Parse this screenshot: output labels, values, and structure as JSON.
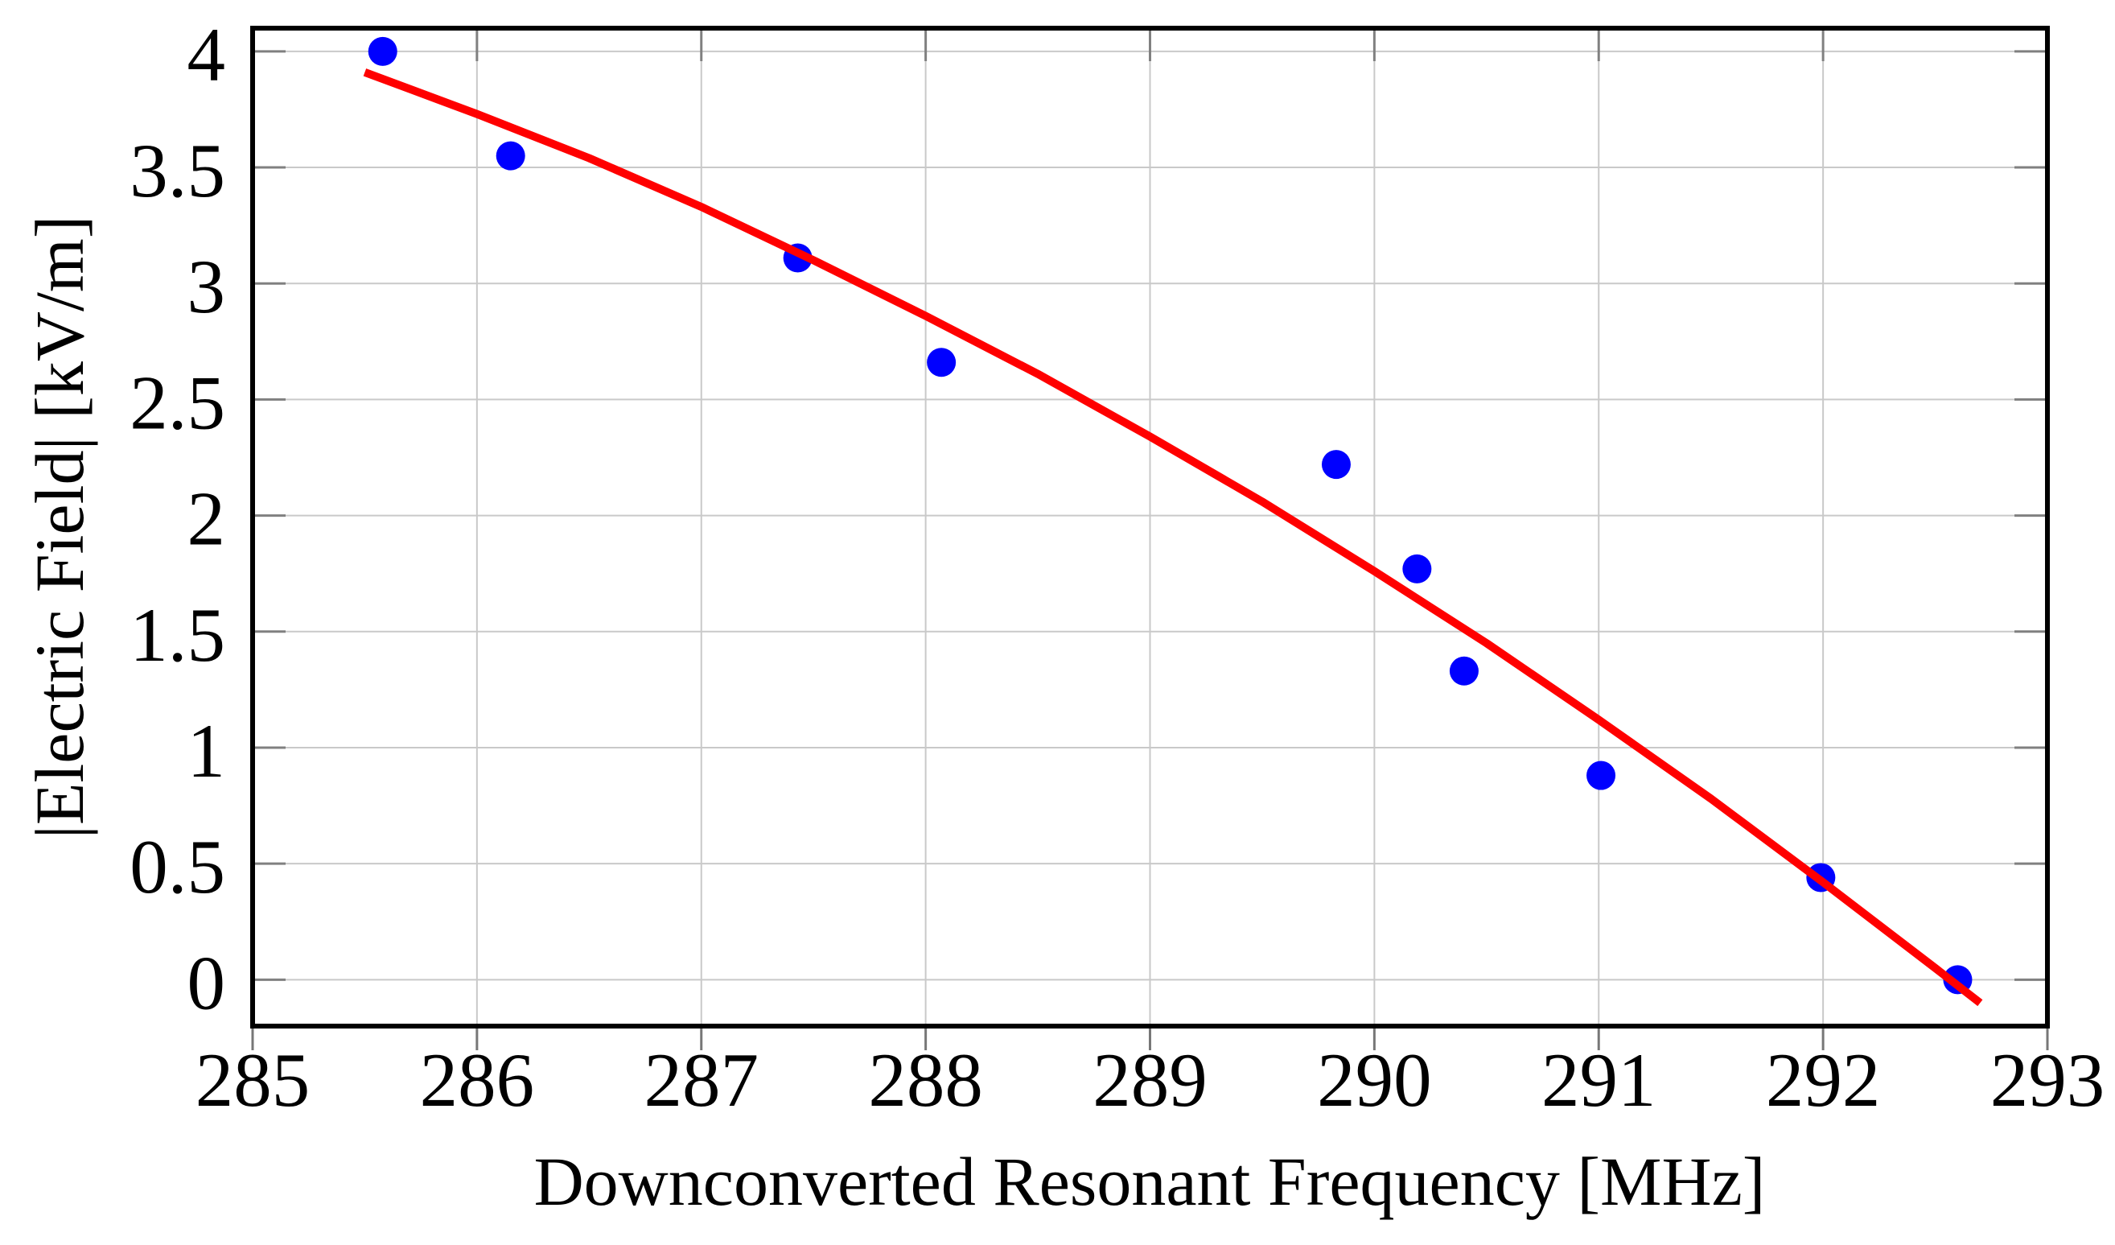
{
  "page": {
    "background": "#ffffff",
    "description": "Scatter plot of measured electric field versus downconverted resonant frequency with red polynomial fit curve"
  },
  "chart_data": {
    "type": "scatter",
    "title": "",
    "xlabel": "Downconverted Resonant Frequency [MHz]",
    "ylabel": "|Electric Field| [kV/m]",
    "xlim": [
      285,
      293
    ],
    "ylim": [
      -0.2,
      4.1
    ],
    "x_ticks": [
      285,
      286,
      287,
      288,
      289,
      290,
      291,
      292,
      293
    ],
    "x_tick_labels": [
      "285",
      "286",
      "287",
      "288",
      "289",
      "290",
      "291",
      "292",
      "293"
    ],
    "y_ticks": [
      0,
      0.5,
      1,
      1.5,
      2,
      2.5,
      3,
      3.5,
      4
    ],
    "y_tick_labels": [
      "0",
      "0.5",
      "1",
      "1.5",
      "2",
      "2.5",
      "3",
      "3.5",
      "4"
    ],
    "grid": true,
    "legend_position": "none",
    "colors": {
      "frame": "#000000",
      "grid": "#c9c9c9",
      "inner_tick": "#808080",
      "outer_tick": "#777777",
      "text": "#000000",
      "points": "#0000ff",
      "fit": "#ff0000"
    },
    "series": [
      {
        "name": "measured-field-points",
        "type": "scatter",
        "color": "#0000ff",
        "marker": "circle",
        "marker_radius": 18,
        "points": [
          [
            285.58,
            4.0
          ],
          [
            286.15,
            3.55
          ],
          [
            287.43,
            3.11
          ],
          [
            288.07,
            2.66
          ],
          [
            289.83,
            2.22
          ],
          [
            290.19,
            1.77
          ],
          [
            290.4,
            1.33
          ],
          [
            291.01,
            0.88
          ],
          [
            291.99,
            0.44
          ],
          [
            292.6,
            0.0
          ]
        ]
      },
      {
        "name": "fit-curve",
        "type": "line",
        "color": "#ff0000",
        "line_width": 10,
        "points": [
          [
            285.5,
            3.91
          ],
          [
            286.0,
            3.73
          ],
          [
            286.5,
            3.54
          ],
          [
            287.0,
            3.33
          ],
          [
            287.5,
            3.1
          ],
          [
            288.0,
            2.86
          ],
          [
            288.5,
            2.61
          ],
          [
            289.0,
            2.34
          ],
          [
            289.5,
            2.06
          ],
          [
            290.0,
            1.76
          ],
          [
            290.5,
            1.45
          ],
          [
            291.0,
            1.12
          ],
          [
            291.5,
            0.78
          ],
          [
            292.0,
            0.42
          ],
          [
            292.5,
            0.05
          ],
          [
            292.7,
            -0.1
          ]
        ]
      }
    ]
  }
}
